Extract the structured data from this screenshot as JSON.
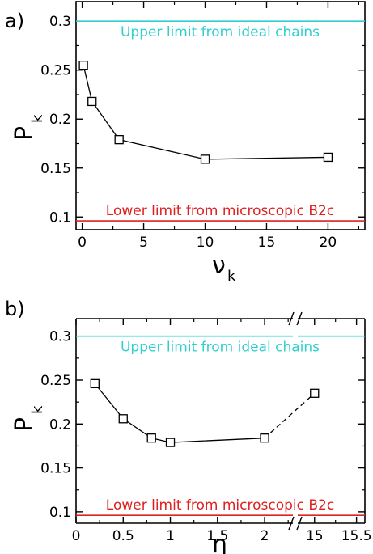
{
  "chart_data": [
    {
      "panel": "a)",
      "type": "line",
      "ylabel": "P",
      "ylabel_sub": "k",
      "xlabel": "ν",
      "xlabel_sub": "k",
      "xlim": [
        -0.5,
        23
      ],
      "ylim": [
        0.087,
        0.32
      ],
      "xticks": [
        0,
        5,
        10,
        15,
        20
      ],
      "xtick_labels": [
        "0",
        "5",
        "10",
        "15",
        "20"
      ],
      "yticks": [
        0.1,
        0.15,
        0.2,
        0.25,
        0.3
      ],
      "ytick_labels": [
        "0.1",
        "0.15",
        "0.2",
        "0.25",
        "0.3"
      ],
      "series": [
        {
          "marker": "open-square",
          "color": "#000000",
          "x": [
            0.1,
            0.8,
            3,
            10,
            20
          ],
          "y": [
            0.255,
            0.218,
            0.179,
            0.159,
            0.161
          ]
        }
      ],
      "reference_lines": [
        {
          "y": 0.3,
          "label": "Upper limit from ideal chains",
          "color": "#2fcfcf"
        },
        {
          "y": 0.096,
          "label": "Lower limit from microscopic B2c",
          "color": "#e02020"
        }
      ]
    },
    {
      "panel": "b)",
      "type": "line",
      "ylabel": "P",
      "ylabel_sub": "k",
      "xlabel": "η",
      "broken_x_axis": true,
      "ylim": [
        0.087,
        0.32
      ],
      "xticks": [
        0,
        0.5,
        1,
        1.5,
        2,
        15,
        15.5
      ],
      "xtick_labels": [
        "0",
        "0.5",
        "1",
        "1.5",
        "2",
        "15",
        "15.5"
      ],
      "yticks": [
        0.1,
        0.15,
        0.2,
        0.25,
        0.3
      ],
      "ytick_labels": [
        "0.1",
        "0.15",
        "0.2",
        "0.25",
        "0.3"
      ],
      "series": [
        {
          "marker": "open-square",
          "color": "#000000",
          "x": [
            0.2,
            0.5,
            0.8,
            1.0,
            2.0,
            15
          ],
          "y": [
            0.246,
            0.206,
            0.184,
            0.179,
            0.184,
            0.235
          ],
          "dashed_segment_after_index": 4
        }
      ],
      "reference_lines": [
        {
          "y": 0.3,
          "label": "Upper limit from ideal chains",
          "color": "#2fcfcf"
        },
        {
          "y": 0.096,
          "label": "Lower limit from microscopic B2c",
          "color": "#e02020"
        }
      ]
    }
  ]
}
